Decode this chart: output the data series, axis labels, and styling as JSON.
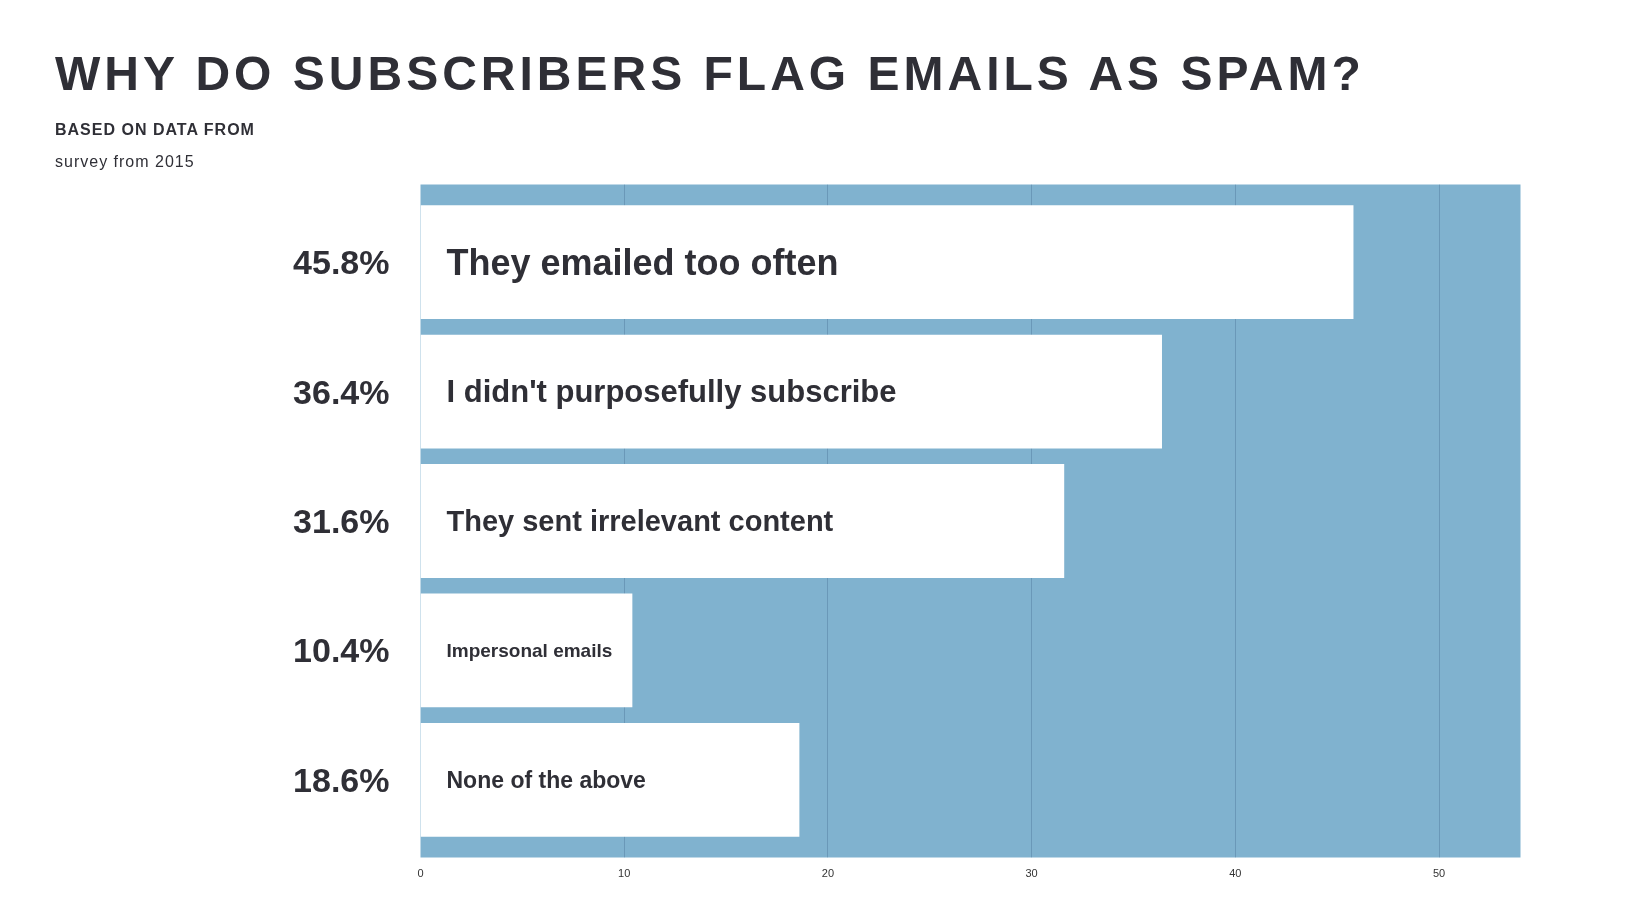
{
  "chart_data": {
    "type": "bar",
    "orientation": "horizontal",
    "title": "WHY DO SUBSCRIBERS FLAG EMAILS AS SPAM?",
    "subtitle": "BASED ON DATA FROM",
    "annotations": [
      "survey from 2015"
    ],
    "categories": [
      "They emailed too often",
      "I didn't purposefully subscribe",
      "They sent irrelevant content",
      "Impersonal emails",
      "None of the above"
    ],
    "values": [
      45.8,
      36.4,
      31.6,
      10.4,
      18.6
    ],
    "value_labels": [
      "45.8%",
      "36.4%",
      "31.6%",
      "10.4%",
      "18.6%"
    ],
    "color": "#ffffff",
    "xlim": [
      0,
      54
    ],
    "xticks": [
      0,
      10,
      20,
      30,
      40,
      50
    ],
    "grid": "x"
  }
}
